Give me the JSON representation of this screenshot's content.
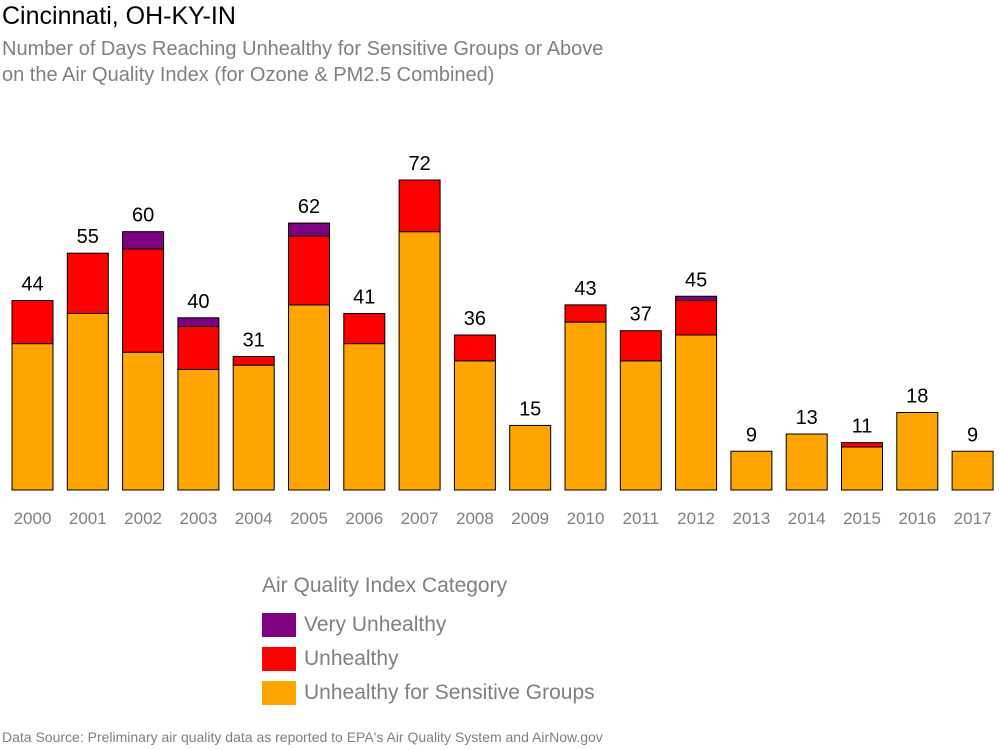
{
  "title": "Cincinnati, OH-KY-IN",
  "subtitle_lines": [
    "Number of Days Reaching Unhealthy for Sensitive Groups or Above",
    "on the Air Quality Index (for Ozone & PM2.5 Combined)"
  ],
  "source": "Data Source: Preliminary air quality data as reported to EPA's Air Quality System and AirNow.gov",
  "legend": {
    "title": "Air Quality Index Category",
    "items": [
      {
        "label": "Very Unhealthy",
        "color": "#7E0180"
      },
      {
        "label": "Unhealthy",
        "color": "#FF0000"
      },
      {
        "label": "Unhealthy for Sensitive Groups",
        "color": "#FFA500"
      }
    ]
  },
  "chart_data": {
    "type": "bar",
    "stacked": true,
    "categories": [
      "2000",
      "2001",
      "2002",
      "2003",
      "2004",
      "2005",
      "2006",
      "2007",
      "2008",
      "2009",
      "2010",
      "2011",
      "2012",
      "2013",
      "2014",
      "2015",
      "2016",
      "2017"
    ],
    "series": [
      {
        "name": "Unhealthy for Sensitive Groups",
        "color": "#FFA500",
        "values": [
          34,
          41,
          32,
          28,
          29,
          43,
          34,
          60,
          30,
          15,
          39,
          30,
          36,
          9,
          13,
          10,
          18,
          9
        ]
      },
      {
        "name": "Unhealthy",
        "color": "#FF0000",
        "values": [
          10,
          14,
          24,
          10,
          2,
          16,
          7,
          12,
          6,
          0,
          4,
          7,
          8,
          0,
          0,
          1,
          0,
          0
        ]
      },
      {
        "name": "Very Unhealthy",
        "color": "#7E0180",
        "values": [
          0,
          0,
          4,
          2,
          0,
          3,
          0,
          0,
          0,
          0,
          0,
          0,
          1,
          0,
          0,
          0,
          0,
          0
        ]
      }
    ],
    "totals": [
      44,
      55,
      60,
      40,
      31,
      62,
      41,
      72,
      36,
      15,
      43,
      37,
      45,
      9,
      13,
      11,
      18,
      9
    ],
    "ylim": [
      0,
      72
    ],
    "grid": false,
    "legend_position": "bottom"
  }
}
